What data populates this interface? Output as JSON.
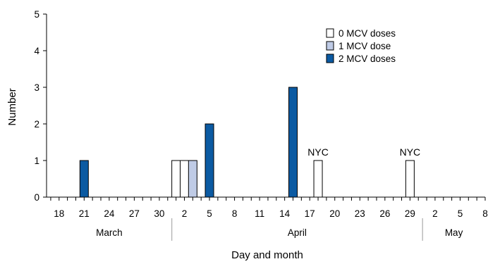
{
  "chart_data": {
    "type": "bar",
    "stacked": true,
    "xlabel": "Day and month",
    "ylabel": "Number",
    "ylim": [
      0,
      5
    ],
    "yticks": [
      0,
      1,
      2,
      3,
      4,
      5
    ],
    "x_start": "2011-03-17",
    "x_end": "2011-05-08",
    "x_tick_labels": [
      "18",
      "21",
      "24",
      "27",
      "30",
      "2",
      "5",
      "8",
      "11",
      "14",
      "17",
      "20",
      "23",
      "26",
      "29",
      "2",
      "5",
      "8"
    ],
    "months": [
      {
        "label": "March"
      },
      {
        "label": "April"
      },
      {
        "label": "May"
      }
    ],
    "legend_position": "top-right",
    "series": [
      {
        "name": "0 MCV doses",
        "color": "#ffffff"
      },
      {
        "name": "1 MCV dose",
        "color": "#bfcbe6"
      },
      {
        "name": "2 MCV doses",
        "color": "#0b5aa2"
      }
    ],
    "bars": [
      {
        "date": "2011-03-21",
        "series": "2 MCV doses",
        "value": 1
      },
      {
        "date": "2011-04-01",
        "series": "0 MCV doses",
        "value": 1
      },
      {
        "date": "2011-04-02",
        "series": "0 MCV doses",
        "value": 1
      },
      {
        "date": "2011-04-03",
        "series": "1 MCV dose",
        "value": 1
      },
      {
        "date": "2011-04-05",
        "series": "2 MCV doses",
        "value": 2
      },
      {
        "date": "2011-04-15",
        "series": "2 MCV doses",
        "value": 3
      },
      {
        "date": "2011-04-18",
        "series": "0 MCV doses",
        "value": 1
      },
      {
        "date": "2011-04-29",
        "series": "0 MCV doses",
        "value": 1
      }
    ],
    "annotations": [
      {
        "text": "NYC",
        "date": "2011-04-18",
        "value": 1
      },
      {
        "text": "NYC",
        "date": "2011-04-29",
        "value": 1
      }
    ]
  }
}
